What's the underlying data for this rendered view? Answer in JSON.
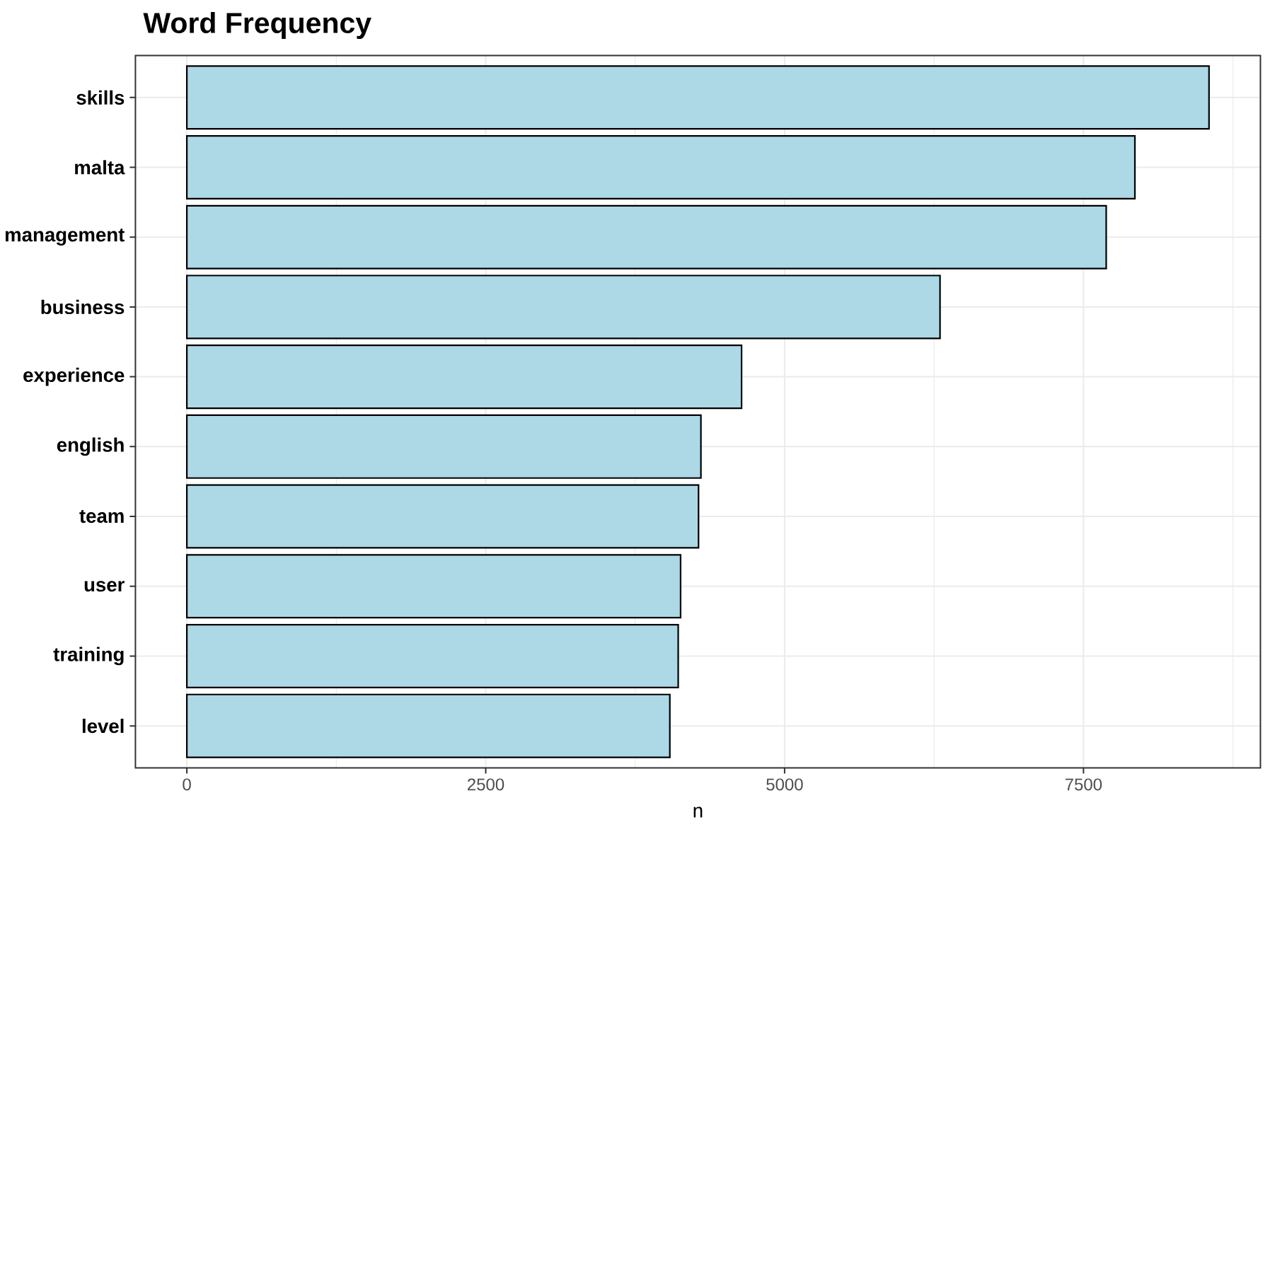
{
  "chart_data": {
    "type": "bar",
    "orientation": "horizontal",
    "title": "Word Frequency",
    "xlabel": "n",
    "categories": [
      "skills",
      "malta",
      "management",
      "business",
      "experience",
      "english",
      "team",
      "user",
      "training",
      "level"
    ],
    "values": [
      8550,
      7930,
      7690,
      6300,
      4640,
      4300,
      4280,
      4130,
      4110,
      4040
    ],
    "color": "#add8e6",
    "xlim": [
      -430,
      8980
    ],
    "xticks": [
      0,
      2500,
      5000,
      7500
    ],
    "grid": true
  }
}
